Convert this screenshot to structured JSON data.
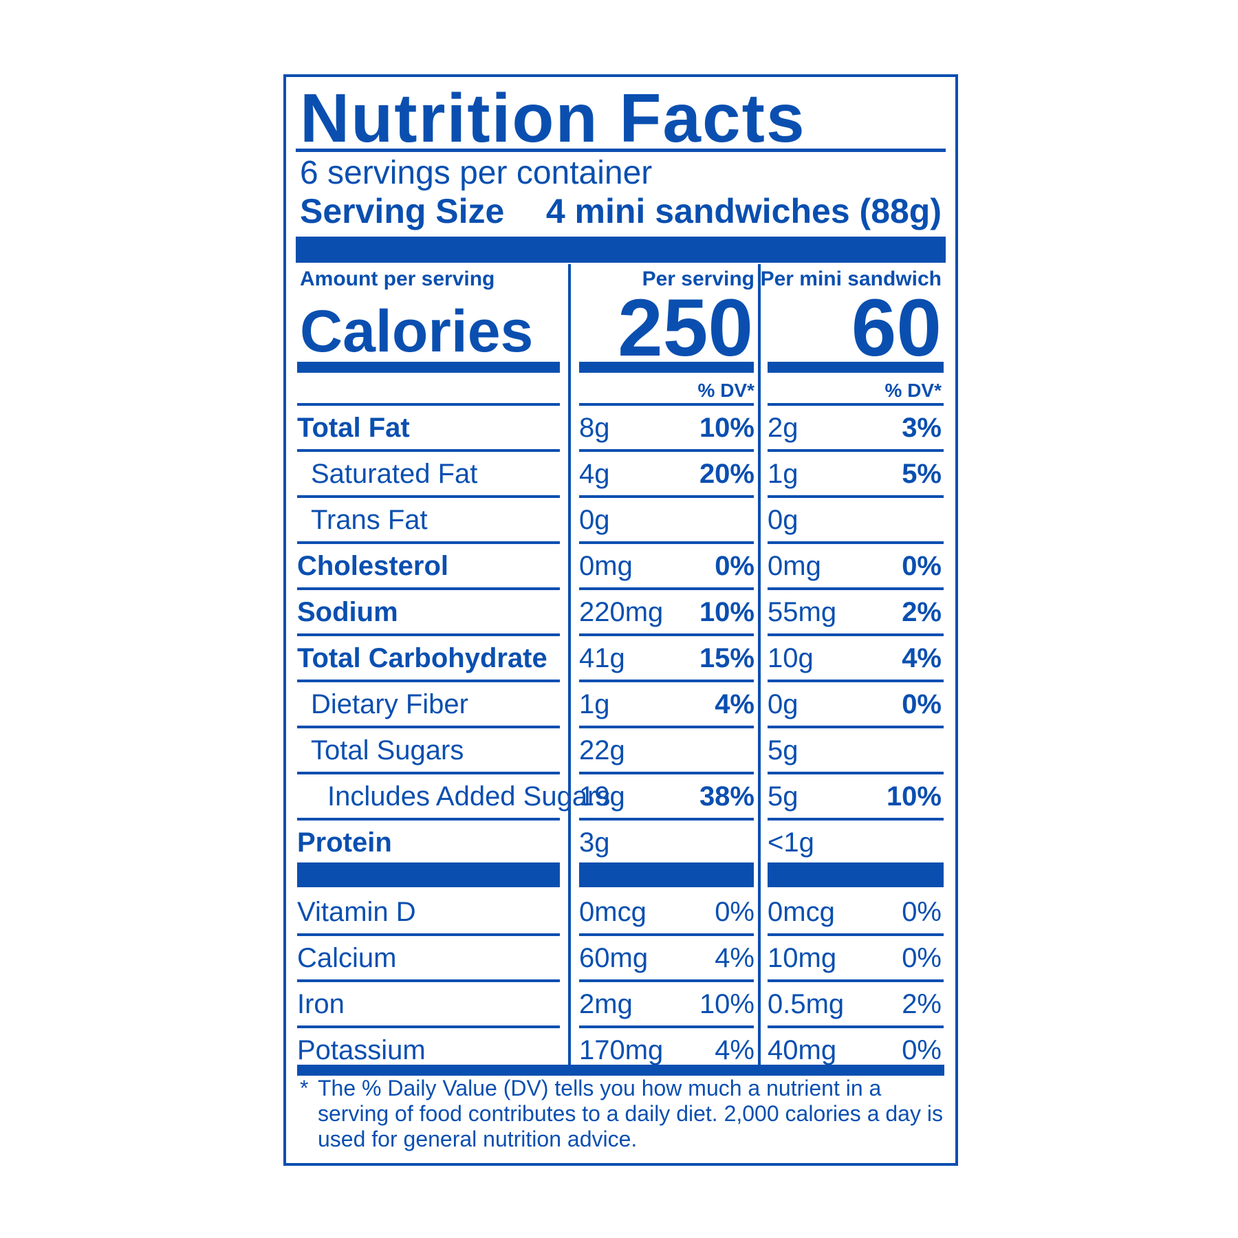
{
  "label": {
    "title": "Nutrition Facts",
    "servings_per_container": "6 servings per container",
    "serving_size_label": "Serving Size",
    "serving_size_value": "4 mini sandwiches (88g)",
    "amount_per_serving": "Amount per serving",
    "calories_label": "Calories",
    "col_per_serving": "Per serving",
    "col_per_mini": "Per mini sandwich",
    "calories_per_serving": "250",
    "calories_per_mini": "60",
    "dv_header": "% DV*",
    "footnote_star": "*",
    "footnote": "The % Daily Value (DV) tells you how much a nutrient in a serving of food contributes to a daily diet. 2,000 calories a day is used for general nutrition advice."
  },
  "nutrients": [
    {
      "name": "Total Fat",
      "a1": "8g",
      "p1": "10%",
      "a2": "2g",
      "p2": "3%"
    },
    {
      "name": "Saturated Fat",
      "a1": "4g",
      "p1": "20%",
      "a2": "1g",
      "p2": "5%"
    },
    {
      "name": "Trans Fat",
      "a1": "0g",
      "p1": "",
      "a2": "0g",
      "p2": ""
    },
    {
      "name": "Cholesterol",
      "a1": "0mg",
      "p1": "0%",
      "a2": "0mg",
      "p2": "0%"
    },
    {
      "name": "Sodium",
      "a1": "220mg",
      "p1": "10%",
      "a2": "55mg",
      "p2": "2%"
    },
    {
      "name": "Total Carbohydrate",
      "a1": "41g",
      "p1": "15%",
      "a2": "10g",
      "p2": "4%"
    },
    {
      "name": "Dietary Fiber",
      "a1": "1g",
      "p1": "4%",
      "a2": "0g",
      "p2": "0%"
    },
    {
      "name": "Total Sugars",
      "a1": "22g",
      "p1": "",
      "a2": "5g",
      "p2": ""
    },
    {
      "name": "Includes Added Sugars",
      "a1": "19g",
      "p1": "38%",
      "a2": "5g",
      "p2": "10%"
    },
    {
      "name": "Protein",
      "a1": "3g",
      "p1": "",
      "a2": "<1g",
      "p2": ""
    }
  ],
  "vitamins": [
    {
      "name": "Vitamin D",
      "a1": "0mcg",
      "p1": "0%",
      "a2": "0mcg",
      "p2": "0%"
    },
    {
      "name": "Calcium",
      "a1": "60mg",
      "p1": "4%",
      "a2": "10mg",
      "p2": "0%"
    },
    {
      "name": "Iron",
      "a1": "2mg",
      "p1": "10%",
      "a2": "0.5mg",
      "p2": "2%"
    },
    {
      "name": "Potassium",
      "a1": "170mg",
      "p1": "4%",
      "a2": "40mg",
      "p2": "0%"
    }
  ],
  "colors": {
    "ink": "#0a4fb0",
    "background": "#ffffff"
  }
}
